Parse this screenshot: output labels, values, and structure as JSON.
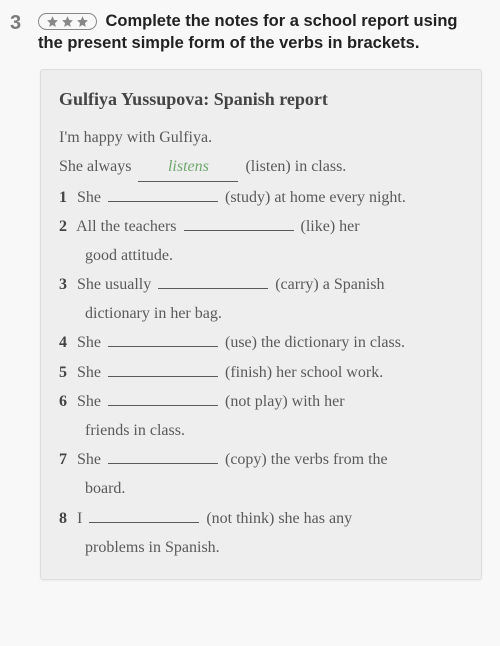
{
  "colors": {
    "page_bg": "#f8f8f8",
    "box_bg": "#eeeeee",
    "number_color": "#7a7a7a",
    "star_fill": "#888",
    "star_border": "#888",
    "instruction_color": "#222",
    "report_text": "#5a5a5a",
    "report_title": "#444",
    "fill_answer": "#6fa86f",
    "blank_line": "#5a5a5a"
  },
  "exercise_number": "3",
  "star_count": 3,
  "instruction": "Complete the notes for a school report using the present simple form of the verbs in brackets.",
  "report": {
    "title": "Gulfiya Yussupova: Spanish report",
    "intro": "I'm happy with Gulfiya.",
    "example": {
      "pre": "She always",
      "answer": "listens",
      "post": "(listen) in class."
    },
    "items": [
      {
        "num": "1",
        "pre": "She",
        "post": "(study) at home every night.",
        "cont": ""
      },
      {
        "num": "2",
        "pre": "All the teachers",
        "post": "(like) her",
        "cont": "good attitude."
      },
      {
        "num": "3",
        "pre": "She usually",
        "post": "(carry) a Spanish",
        "cont": "dictionary in her bag."
      },
      {
        "num": "4",
        "pre": "She",
        "post": "(use) the dictionary in class.",
        "cont": ""
      },
      {
        "num": "5",
        "pre": "She",
        "post": "(finish) her school work.",
        "cont": ""
      },
      {
        "num": "6",
        "pre": "She",
        "post": "(not play) with her",
        "cont": "friends in class."
      },
      {
        "num": "7",
        "pre": "She",
        "post": "(copy) the verbs from the",
        "cont": "board."
      },
      {
        "num": "8",
        "pre": "I",
        "post": "(not think) she has any",
        "cont": "problems in Spanish."
      }
    ]
  },
  "fonts": {
    "instruction_size": 16.5,
    "report_size": 16,
    "title_size": 18
  }
}
